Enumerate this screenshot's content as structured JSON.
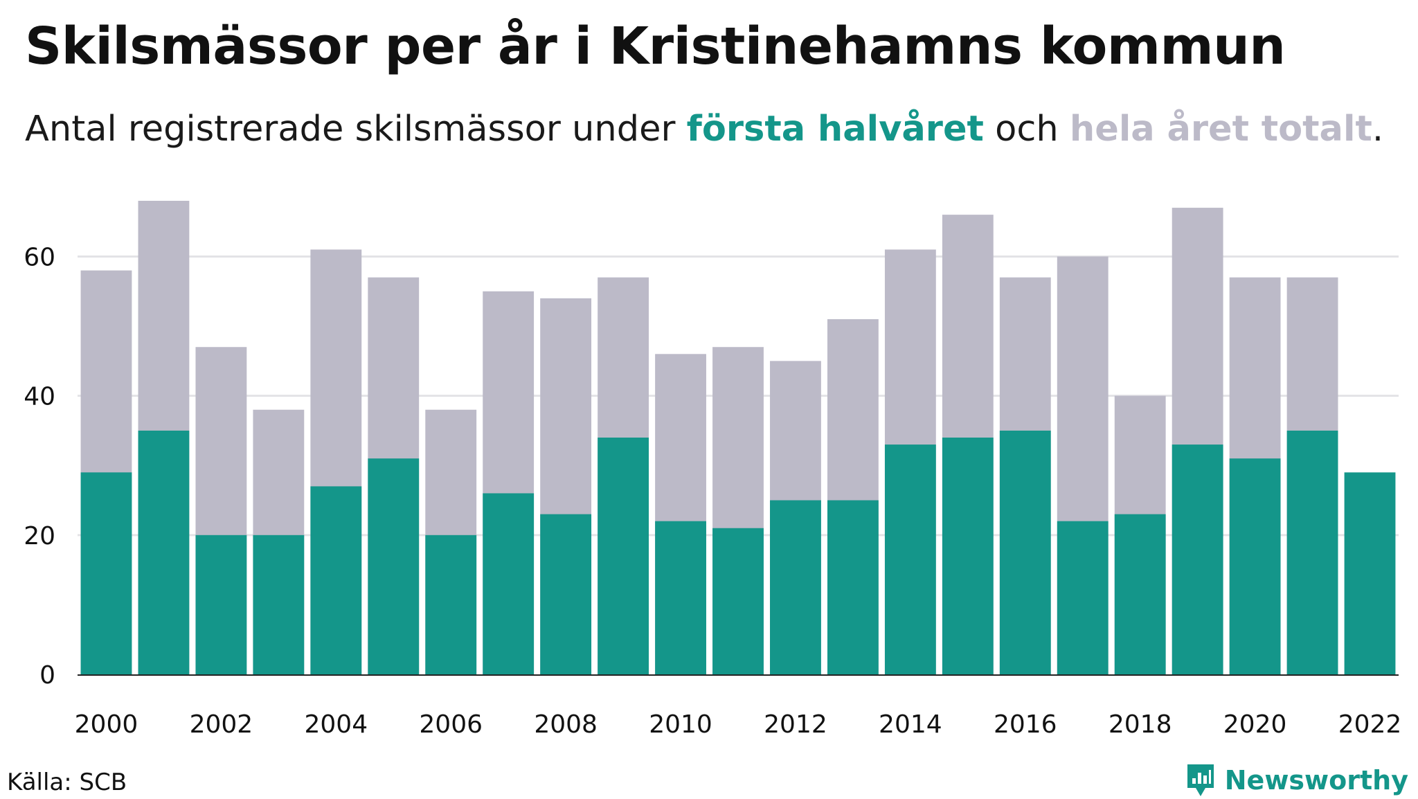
{
  "title": "Skilsmässor per år i Kristinehamns kommun",
  "subtitle": {
    "before": "Antal registrerade skilsmässor under ",
    "first_half": "första halvåret",
    "middle": " och ",
    "total": "hela året totalt",
    "after": "."
  },
  "source": "Källa: SCB",
  "brand": {
    "name": "Newsworthy",
    "logo_icon": "newsworthy-logo-icon"
  },
  "colors": {
    "first_half": "#14968a",
    "total": "#bcbac8",
    "grid": "#e3e3e6",
    "baseline": "#222222",
    "text": "#111111"
  },
  "chart_data": {
    "type": "bar",
    "stacked": "overlay",
    "categories": [
      "2000",
      "2001",
      "2002",
      "2003",
      "2004",
      "2005",
      "2006",
      "2007",
      "2008",
      "2009",
      "2010",
      "2011",
      "2012",
      "2013",
      "2014",
      "2015",
      "2016",
      "2017",
      "2018",
      "2019",
      "2020",
      "2021",
      "2022"
    ],
    "series": [
      {
        "name": "hela året totalt",
        "color": "#bcbac8",
        "values": [
          58,
          68,
          47,
          38,
          61,
          57,
          38,
          55,
          54,
          57,
          46,
          47,
          45,
          51,
          61,
          66,
          57,
          60,
          40,
          67,
          57,
          57,
          null
        ]
      },
      {
        "name": "första halvåret",
        "color": "#14968a",
        "values": [
          29,
          35,
          20,
          20,
          27,
          31,
          20,
          26,
          23,
          34,
          22,
          21,
          25,
          25,
          33,
          34,
          35,
          22,
          23,
          33,
          31,
          35,
          29
        ]
      }
    ],
    "x_tick_labels": [
      "2000",
      "2002",
      "2004",
      "2006",
      "2008",
      "2010",
      "2012",
      "2014",
      "2016",
      "2018",
      "2020",
      "2022"
    ],
    "y_ticks": [
      0,
      20,
      40,
      60
    ],
    "ylim": [
      0,
      68
    ],
    "grid": true,
    "xlabel": "",
    "ylabel": ""
  }
}
